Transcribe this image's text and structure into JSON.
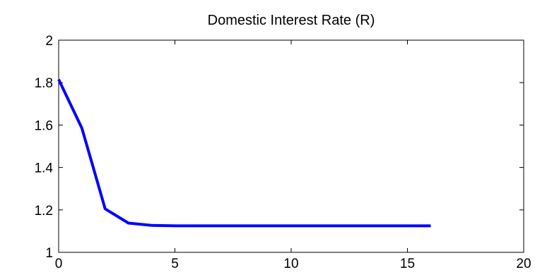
{
  "chart_data": {
    "type": "line",
    "title": "Domestic Interest Rate (R)",
    "xlabel": "",
    "ylabel": "",
    "xlim": [
      0,
      20
    ],
    "ylim": [
      1,
      2
    ],
    "xticks": [
      0,
      5,
      10,
      15,
      20
    ],
    "yticks": [
      1,
      1.2,
      1.4,
      1.6,
      1.8,
      2
    ],
    "xtick_labels": [
      "0",
      "5",
      "10",
      "15",
      "20"
    ],
    "ytick_labels": [
      "1",
      "1.2",
      "1.4",
      "1.6",
      "1.8",
      "2"
    ],
    "grid": false,
    "line_color": "#0000ff",
    "series": [
      {
        "x": [
          0,
          1,
          2,
          3,
          4,
          5,
          6,
          7,
          8,
          9,
          10,
          11,
          12,
          13,
          14,
          15,
          16
        ],
        "values": [
          1.815,
          1.585,
          1.205,
          1.138,
          1.127,
          1.125,
          1.125,
          1.125,
          1.125,
          1.125,
          1.125,
          1.125,
          1.125,
          1.125,
          1.125,
          1.125,
          1.125
        ]
      }
    ]
  }
}
